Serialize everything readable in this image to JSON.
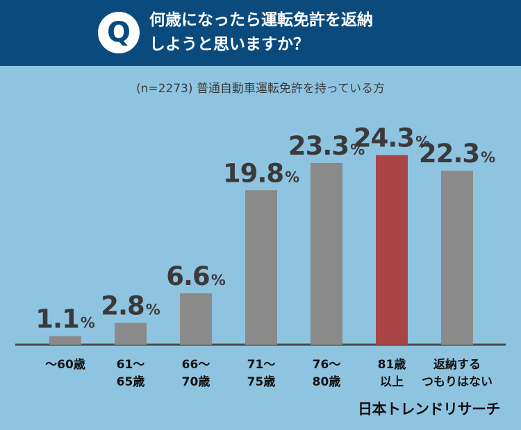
{
  "header": {
    "badge": "Q",
    "question_line1": "何歳になったら運転免許を返納",
    "question_line2": "しようと思いますか？"
  },
  "subtitle": "(n=2273) 普通自動車運転免許を持っている方",
  "brand": "日本トレンドリサーチ",
  "colors": {
    "header_bg": "#0b4a7c",
    "background": "#8fc4e1",
    "bar": "#8a8a8a",
    "bar_highlight": "#a84446",
    "baseline": "#4a4a4a",
    "value_text": "#3a3a3a"
  },
  "chart_data": {
    "type": "bar",
    "categories": [
      [
        "〜60歳"
      ],
      [
        "61〜",
        "65歳"
      ],
      [
        "66〜",
        "70歳"
      ],
      [
        "71〜",
        "75歳"
      ],
      [
        "76〜",
        "80歳"
      ],
      [
        "81歳",
        "以上"
      ],
      [
        "返納する",
        "つもりはない"
      ]
    ],
    "values": [
      1.1,
      2.8,
      6.6,
      19.8,
      23.3,
      24.3,
      22.3
    ],
    "value_unit": "%",
    "highlight_index": 5,
    "ylim": [
      0,
      28
    ],
    "grid": false,
    "legend": "none"
  }
}
